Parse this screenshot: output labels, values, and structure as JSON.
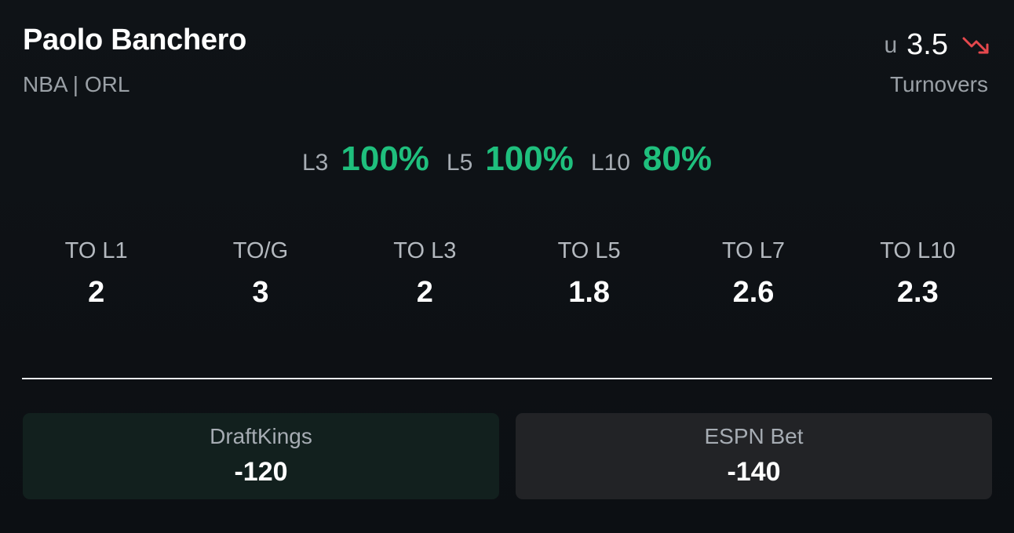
{
  "player": {
    "name": "Paolo Banchero",
    "meta": "NBA | ORL"
  },
  "line": {
    "direction": "u",
    "value": "3.5",
    "stat_type": "Turnovers",
    "trend_icon": "trending-down-icon",
    "trend_color": "#e5484d"
  },
  "hit_rates": [
    {
      "label": "L3",
      "value": "100%"
    },
    {
      "label": "L5",
      "value": "100%"
    },
    {
      "label": "L10",
      "value": "80%"
    }
  ],
  "stats": [
    {
      "label": "TO L1",
      "value": "2"
    },
    {
      "label": "TO/G",
      "value": "3"
    },
    {
      "label": "TO L3",
      "value": "2"
    },
    {
      "label": "TO L5",
      "value": "1.8"
    },
    {
      "label": "TO L7",
      "value": "2.6"
    },
    {
      "label": "TO L10",
      "value": "2.3"
    }
  ],
  "books": [
    {
      "name": "DraftKings",
      "odds": "-120"
    },
    {
      "name": "ESPN Bet",
      "odds": "-140"
    }
  ],
  "colors": {
    "accent_green": "#1fbf7d",
    "background": "#0e1116"
  }
}
